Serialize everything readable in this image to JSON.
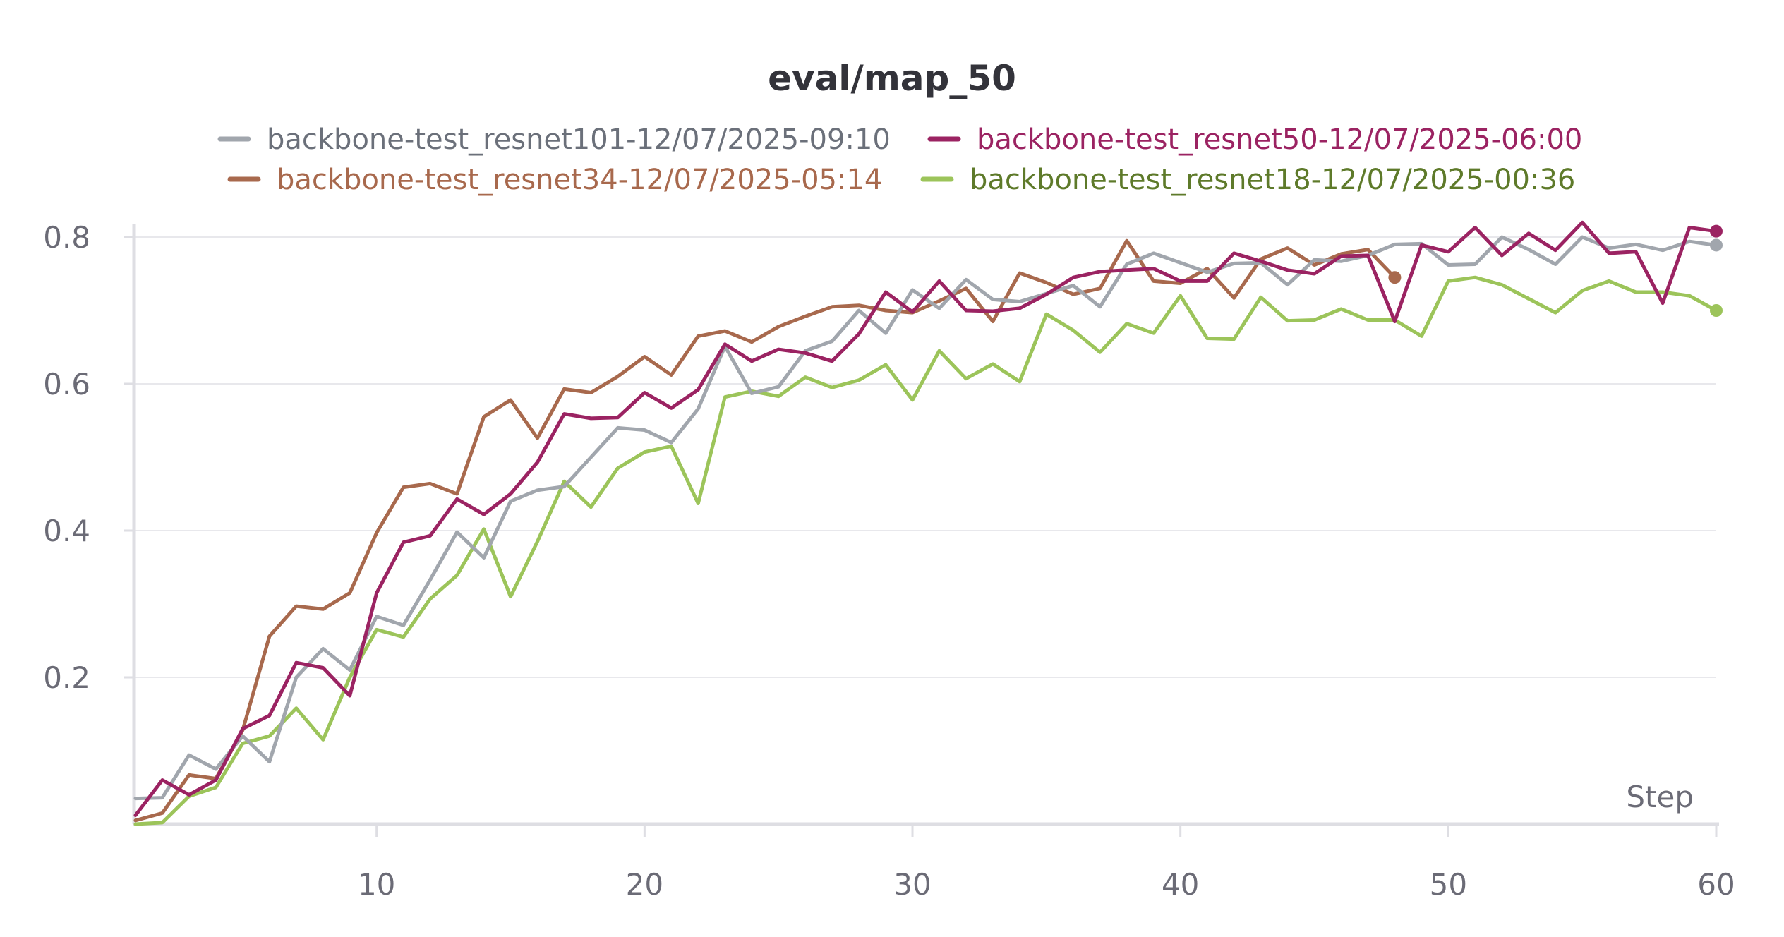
{
  "chart_data": {
    "type": "line",
    "title": "eval/map_50",
    "xlabel": "Step",
    "ylabel": "",
    "xlim": [
      1,
      60
    ],
    "ylim": [
      0,
      0.8
    ],
    "x_ticks": [
      10,
      20,
      30,
      40,
      50,
      60
    ],
    "y_ticks": [
      0.2,
      0.4,
      0.6,
      0.8
    ],
    "y_tick_labels": [
      "0.2",
      "0.4",
      "0.6",
      "0.8"
    ],
    "grid": true,
    "legend_position": "top",
    "series": [
      {
        "name": "backbone-test_resnet101-12/07/2025-09:10",
        "color": "#a1a6ad",
        "text_color": "#6b707a",
        "values": [
          0.035,
          0.036,
          0.094,
          0.075,
          0.12,
          0.085,
          0.2,
          0.239,
          0.21,
          0.283,
          0.271,
          0.333,
          0.398,
          0.363,
          0.44,
          0.455,
          0.46,
          0.5,
          0.54,
          0.537,
          0.52,
          0.566,
          0.651,
          0.587,
          0.596,
          0.645,
          0.658,
          0.7,
          0.669,
          0.728,
          0.703,
          0.742,
          0.715,
          0.712,
          0.723,
          0.734,
          0.705,
          0.763,
          0.778,
          0.765,
          0.752,
          0.764,
          0.765,
          0.735,
          0.769,
          0.767,
          0.775,
          0.79,
          0.791,
          0.762,
          0.763,
          0.8,
          0.783,
          0.763,
          0.8,
          0.785,
          0.79,
          0.782,
          0.794,
          0.789
        ]
      },
      {
        "name": "backbone-test_resnet50-12/07/2025-06:00",
        "color": "#9b2362",
        "text_color": "#9b2362",
        "values": [
          0.012,
          0.06,
          0.04,
          0.06,
          0.13,
          0.148,
          0.22,
          0.213,
          0.175,
          0.315,
          0.384,
          0.393,
          0.443,
          0.422,
          0.45,
          0.493,
          0.559,
          0.553,
          0.554,
          0.588,
          0.567,
          0.592,
          0.654,
          0.631,
          0.647,
          0.642,
          0.631,
          0.668,
          0.725,
          0.698,
          0.74,
          0.7,
          0.699,
          0.703,
          0.722,
          0.745,
          0.753,
          0.755,
          0.757,
          0.74,
          0.74,
          0.778,
          0.767,
          0.755,
          0.75,
          0.774,
          0.775,
          0.685,
          0.789,
          0.78,
          0.813,
          0.775,
          0.805,
          0.782,
          0.82,
          0.778,
          0.78,
          0.71,
          0.813,
          0.808
        ]
      },
      {
        "name": "backbone-test_resnet34-12/07/2025-05:14",
        "color": "#a8694d",
        "text_color": "#a8694d",
        "values": [
          0.005,
          0.015,
          0.067,
          0.062,
          0.128,
          0.256,
          0.297,
          0.293,
          0.315,
          0.397,
          0.459,
          0.464,
          0.45,
          0.555,
          0.578,
          0.526,
          0.593,
          0.588,
          0.61,
          0.637,
          0.612,
          0.665,
          0.672,
          0.657,
          0.678,
          0.692,
          0.705,
          0.707,
          0.7,
          0.697,
          0.713,
          0.73,
          0.685,
          0.751,
          0.738,
          0.722,
          0.73,
          0.795,
          0.74,
          0.737,
          0.757,
          0.717,
          0.77,
          0.785,
          0.762,
          0.777,
          0.783,
          0.745
        ]
      },
      {
        "name": "backbone-test_resnet18-12/07/2025-00:36",
        "color": "#9cc45a",
        "text_color": "#5e7a2a",
        "values": [
          0.0,
          0.002,
          0.038,
          0.05,
          0.11,
          0.12,
          0.158,
          0.115,
          0.2,
          0.265,
          0.255,
          0.307,
          0.339,
          0.402,
          0.31,
          0.385,
          0.467,
          0.432,
          0.485,
          0.507,
          0.515,
          0.437,
          0.582,
          0.59,
          0.583,
          0.609,
          0.595,
          0.605,
          0.626,
          0.578,
          0.645,
          0.607,
          0.627,
          0.603,
          0.695,
          0.673,
          0.643,
          0.682,
          0.669,
          0.72,
          0.662,
          0.661,
          0.718,
          0.686,
          0.687,
          0.702,
          0.687,
          0.687,
          0.665,
          0.74,
          0.745,
          0.735,
          0.716,
          0.697,
          0.727,
          0.74,
          0.725,
          0.725,
          0.72,
          0.7
        ]
      }
    ]
  }
}
